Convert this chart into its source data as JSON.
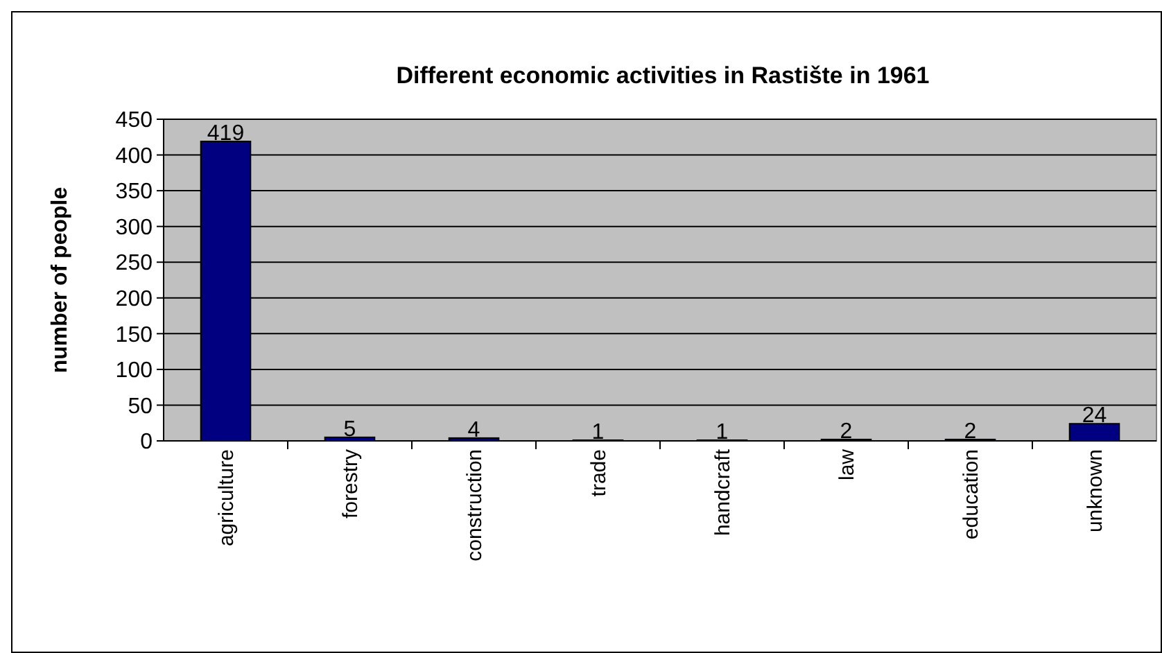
{
  "chart_data": {
    "type": "bar",
    "title": "Different economic activities in Rastište in 1961",
    "ylabel": "number of people",
    "categories": [
      "agriculture",
      "forestry",
      "construction",
      "trade",
      "handcraft",
      "law",
      "education",
      "unknown"
    ],
    "values": [
      419,
      5,
      4,
      1,
      1,
      2,
      2,
      24
    ],
    "color": "#000080",
    "ylim": [
      0,
      450
    ],
    "yticks": [
      0,
      50,
      100,
      150,
      200,
      250,
      300,
      350,
      400,
      450
    ],
    "grid": "y",
    "data_labels": true
  }
}
